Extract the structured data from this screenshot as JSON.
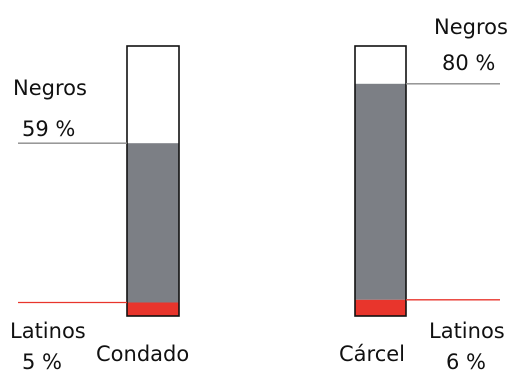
{
  "chart_data": {
    "type": "bar",
    "categories": [
      "Condado",
      "Cárcel"
    ],
    "series": [
      {
        "name": "Negros",
        "values": [
          59,
          80
        ]
      },
      {
        "name": "Latinos",
        "values": [
          5,
          6
        ]
      }
    ],
    "ylim": [
      0,
      100
    ],
    "annotations": [
      {
        "category": "Condado",
        "series": "Negros",
        "label": "Negros",
        "value_text": "59 %"
      },
      {
        "category": "Condado",
        "series": "Latinos",
        "label": "Latinos",
        "value_text": "5 %"
      },
      {
        "category": "Cárcel",
        "series": "Negros",
        "label": "Negros",
        "value_text": "80 %"
      },
      {
        "category": "Cárcel",
        "series": "Latinos",
        "label": "Latinos",
        "value_text": "6 %"
      }
    ],
    "colors": {
      "negros": "#7c7f85",
      "latinos": "#e8352c",
      "frame": "#111111",
      "leader_negros": "#8a8a8a",
      "leader_latinos": "#e8352c"
    }
  }
}
